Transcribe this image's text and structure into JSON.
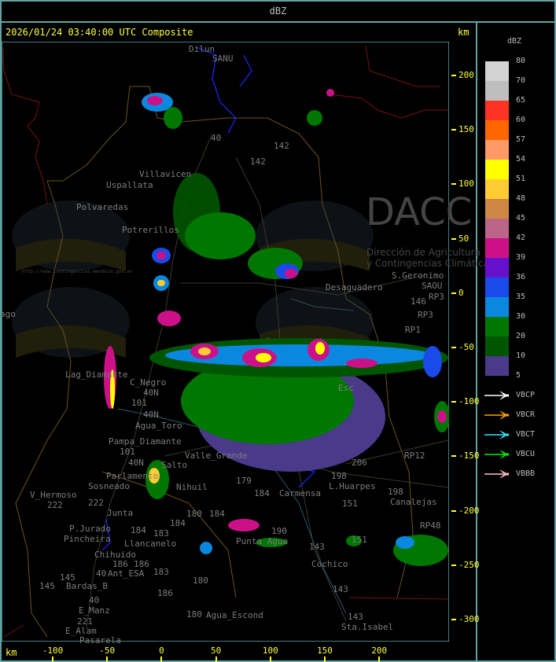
{
  "header": {
    "title": "dBZ"
  },
  "map": {
    "timestamp_title": "2026/01/24 03:40:00 UTC Composite",
    "y_unit": "km",
    "x_unit": "km",
    "y_ticks": [
      "200",
      "150",
      "100",
      "50",
      "0",
      "-50",
      "-100",
      "-150",
      "-200",
      "-250",
      "-300"
    ],
    "x_ticks": [
      "-100",
      "-50",
      "0",
      "50",
      "100",
      "150",
      "200"
    ],
    "watermark": {
      "logo_text": "DACC",
      "line1": "Dirección de Agricultura",
      "line2": "y Contingencias Climáticas",
      "url": "http://www.contingencias.mendoza.gov.ar"
    },
    "places": [
      "Dilun",
      "SANU",
      "40",
      "142",
      "142",
      "Villavicen",
      "Uspallata",
      "Polvaredas",
      "Potrerillos",
      "S.Geronimo",
      "SAOU",
      "Desaguadero",
      "146",
      "RP3",
      "RP3",
      "RP1",
      "ago",
      "Lag_Diamante",
      "C_Negro",
      "40N",
      "101",
      "40N",
      "Agua_Toro",
      "Pampa_Diamante",
      "101",
      "40N",
      "Parlamento",
      "Sosneado",
      "Salto",
      "Nihuil",
      "Valle_Grande",
      "V_Hermoso",
      "222",
      "222",
      "Junta",
      "P.Jurado",
      "Pincheira",
      "184",
      "183",
      "Llancanelo",
      "184",
      "180",
      "184",
      "Chihuido",
      "186",
      "186",
      "40",
      "Ant_ESA",
      "183",
      "145",
      "Bardas_B",
      "180",
      "186",
      "E_Manz",
      "221",
      "E_Alam",
      "Pasarela",
      "180",
      "Agua_Escond",
      "Punta_Agua",
      "190",
      "179",
      "184",
      "Carmensa",
      "L.Huarpes",
      "198",
      "206",
      "151",
      "151",
      "143",
      "Cochico",
      "143",
      "143",
      "Sta.Isabel",
      "RP12",
      "198",
      "Canalejas",
      "RP48",
      "Esc",
      "145",
      "40"
    ]
  },
  "legend": {
    "title": "dBZ",
    "labels": [
      "80",
      "70",
      "65",
      "60",
      "57",
      "54",
      "51",
      "48",
      "45",
      "42",
      "39",
      "36",
      "35",
      "30",
      "20",
      "10",
      "5"
    ],
    "colors": [
      "#d3d3d3",
      "#bebebe",
      "#ff3322",
      "#ff6600",
      "#ff9966",
      "#ffff00",
      "#ffcc33",
      "#cc8844",
      "#bb6688",
      "#cc1188",
      "#6611cc",
      "#1a4be8",
      "#0a88e0",
      "#007700",
      "#005500",
      "#4a3a8a"
    ],
    "radars": [
      {
        "name": "VBCP",
        "color": "#ffffff"
      },
      {
        "name": "VBCR",
        "color": "#ffa500"
      },
      {
        "name": "VBCT",
        "color": "#33e5ff"
      },
      {
        "name": "VBCU",
        "color": "#00ee00"
      },
      {
        "name": "VBBB",
        "color": "#ffc0cb"
      }
    ]
  }
}
